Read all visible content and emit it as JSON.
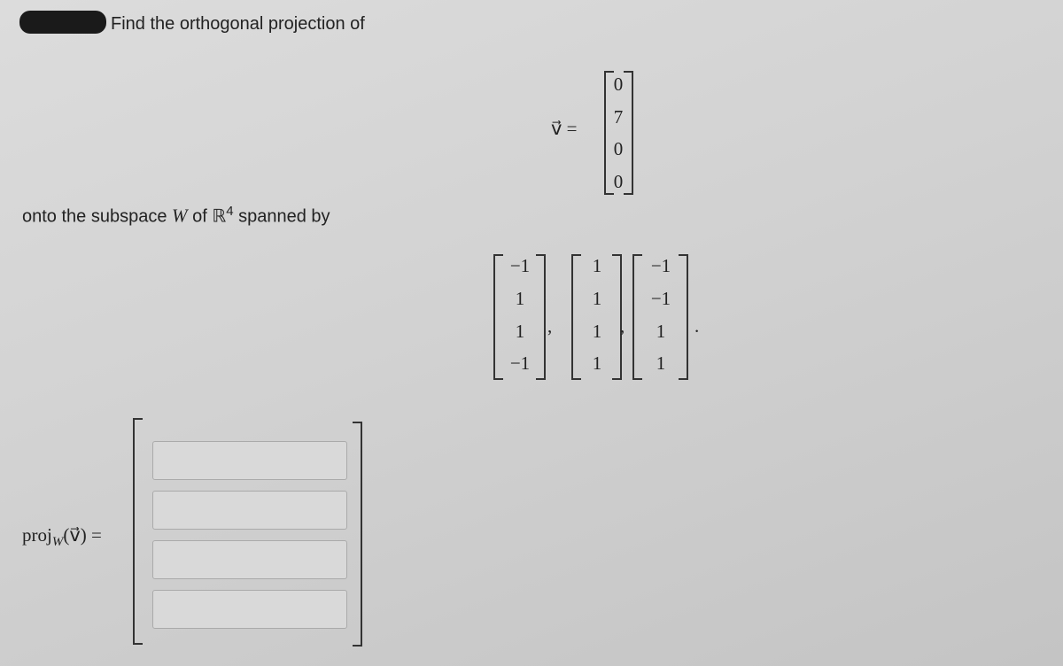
{
  "intro": "Find the orthogonal projection of",
  "vector_v": {
    "label": "v⃗ =",
    "entries": [
      "0",
      "7",
      "0",
      "0"
    ]
  },
  "subspace_text": {
    "before": "onto the subspace",
    "space": "W",
    "of": "of",
    "field": "ℝ",
    "exponent": "4",
    "after": "spanned by"
  },
  "spanning_vectors": [
    [
      "−1",
      "1",
      "1",
      "−1"
    ],
    [
      "1",
      "1",
      "1",
      "1"
    ],
    [
      "−1",
      "−1",
      "1",
      "1"
    ]
  ],
  "separators": [
    ",",
    ",",
    "."
  ],
  "answer": {
    "proj": "proj",
    "sub": "W",
    "arg": "(v⃗) ="
  }
}
